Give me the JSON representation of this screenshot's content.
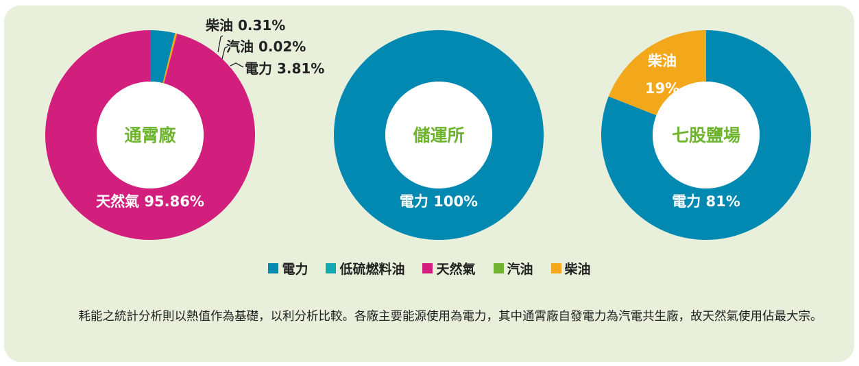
{
  "colors": {
    "electricity": "#0289b2",
    "low_sulfur_fuel_oil": "#13aab4",
    "natural_gas": "#d21f7d",
    "gasoline": "#6fb42f",
    "diesel": "#f3a81c",
    "center_label": "#6fb42f",
    "panel_bg": "#e8efdb"
  },
  "chart_data": [
    {
      "type": "pie",
      "center_label": "通霄廠",
      "slices": [
        {
          "label": "電力",
          "value": 3.81,
          "color_key": "electricity",
          "label_text": "電力 3.81%"
        },
        {
          "label": "汽油",
          "value": 0.02,
          "color_key": "gasoline",
          "label_text": "汽油 0.02%"
        },
        {
          "label": "柴油",
          "value": 0.31,
          "color_key": "diesel",
          "label_text": "柴油 0.31%"
        },
        {
          "label": "天然氣",
          "value": 95.86,
          "color_key": "natural_gas",
          "label_text": "天然氣 95.86%"
        }
      ]
    },
    {
      "type": "pie",
      "center_label": "儲運所",
      "slices": [
        {
          "label": "電力",
          "value": 100,
          "color_key": "electricity",
          "label_text": "電力 100%"
        }
      ]
    },
    {
      "type": "pie",
      "center_label": "七股鹽場",
      "slices": [
        {
          "label": "電力",
          "value": 81,
          "color_key": "electricity",
          "label_text": "電力 81%"
        },
        {
          "label": "柴油",
          "value": 19,
          "color_key": "diesel",
          "label_text": "柴油",
          "label_text2": "19%"
        }
      ]
    }
  ],
  "legend": [
    {
      "label": "電力",
      "color_key": "electricity"
    },
    {
      "label": "低硫燃料油",
      "color_key": "low_sulfur_fuel_oil"
    },
    {
      "label": "天然氣",
      "color_key": "natural_gas"
    },
    {
      "label": "汽油",
      "color_key": "gasoline"
    },
    {
      "label": "柴油",
      "color_key": "diesel"
    }
  ],
  "caption": "耗能之統計分析則以熱值作為基礎，以利分析比較。各廠主要能源使用為電力，其中通霄廠自發電力為汽電共生廠，故天然氣使用佔最大宗。"
}
